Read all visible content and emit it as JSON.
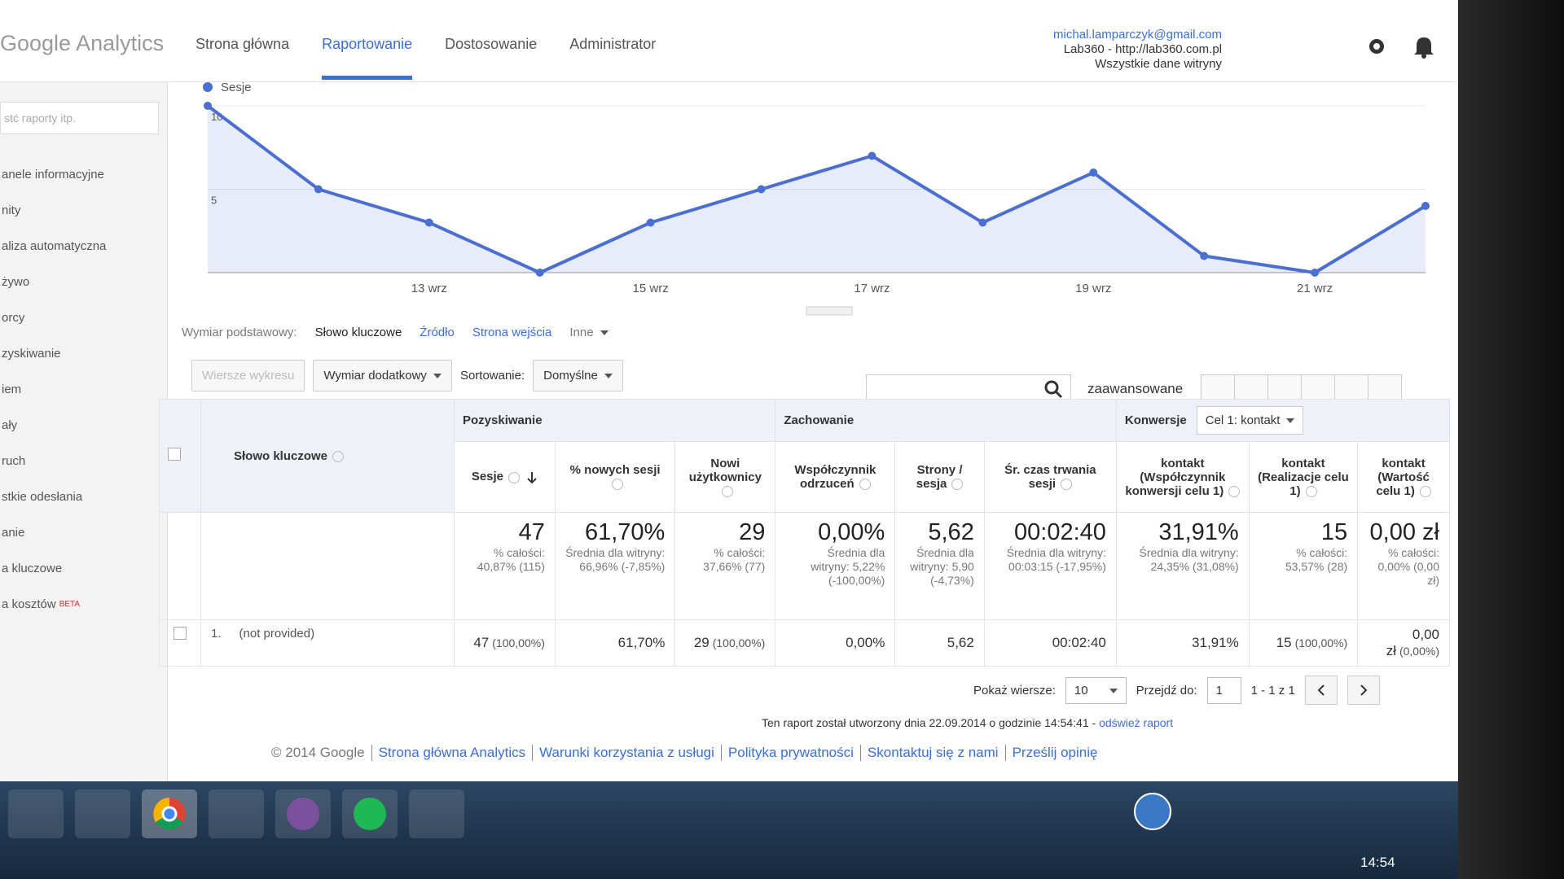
{
  "header": {
    "logo": "Google Analytics",
    "nav": [
      "Strona główna",
      "Raportowanie",
      "Dostosowanie",
      "Administrator"
    ],
    "account": {
      "email": "michal.lamparczyk@gmail.com",
      "property": "Lab360 - http://lab360.com.pl",
      "view": "Wszystkie dane witryny"
    }
  },
  "sidebar": {
    "search": "stć raporty itp.",
    "items": [
      "anele informacyjne",
      "nity",
      "aliza automatyczna",
      "żywo",
      "orcy",
      "zyskiwanie",
      "iem",
      "ały",
      "ruch",
      "stkie odesłania",
      "anie",
      "a kluczowe"
    ],
    "cost_item": {
      "label": "a kosztów",
      "badge": "BETA"
    }
  },
  "chart_data": {
    "type": "line",
    "categories": [
      null,
      null,
      "13 wrz",
      null,
      "15 wrz",
      null,
      "17 wrz",
      null,
      "19 wrz",
      null,
      "21 wrz",
      null
    ],
    "series": [
      {
        "name": "Sesje",
        "color": "#4a6fd1",
        "values": [
          10,
          5,
          3,
          0,
          3,
          5,
          7,
          3,
          6,
          1,
          0,
          4
        ]
      }
    ],
    "ylim": [
      0,
      10
    ],
    "yticks": [
      5,
      10
    ],
    "grid": true
  },
  "toolbar": {
    "dimension_label": "Wymiar podstawowy:",
    "dimensions": [
      "Słowo kluczowe",
      "Źródło",
      "Strona wejścia",
      "Inne"
    ],
    "plot_rows": "Wiersze wykresu",
    "secondary": "Wymiar dodatkowy",
    "sort_label": "Sortowanie:",
    "sort": "Domyślne",
    "advanced": "zaawansowane"
  },
  "table": {
    "groups": [
      "Pozyskiwanie",
      "Zachowanie",
      "Konwersje"
    ],
    "goal": "Cel 1: kontakt",
    "columns": [
      "Słowo kluczowe",
      "Sesje",
      "% nowych sesji",
      "Nowi użytkownicy",
      "Współczynnik odrzuceń",
      "Strony / sesja",
      "Śr. czas trwania sesji",
      "kontakt (Współczynnik konwersji celu 1)",
      "kontakt (Realizacje celu 1)",
      "kontakt (Wartość celu 1)"
    ],
    "totals": [
      {
        "value": "47",
        "note": "% całości: 40,87% (115)"
      },
      {
        "value": "61,70%",
        "note": "Średnia dla witryny: 66,96% (-7,85%)"
      },
      {
        "value": "29",
        "note": "% całości: 37,66% (77)"
      },
      {
        "value": "0,00%",
        "note": "Średnia dla witryny: 5,22% (-100,00%)"
      },
      {
        "value": "5,62",
        "note": "Średnia dla witryny: 5,90 (-4,73%)"
      },
      {
        "value": "00:02:40",
        "note": "Średnia dla witryny: 00:03:15 (-17,95%)"
      },
      {
        "value": "31,91%",
        "note": "Średnia dla witryny: 24,35% (31,08%)"
      },
      {
        "value": "15",
        "note": "% całości: 53,57% (28)"
      },
      {
        "value": "0,00 zł",
        "note": "% całości: 0,00% (0,00 zł)"
      }
    ],
    "rows": [
      {
        "index": "1.",
        "keyword": "(not provided)",
        "cells": [
          {
            "value": "47",
            "pct": "(100,00%)"
          },
          {
            "value": "61,70%"
          },
          {
            "value": "29",
            "pct": "(100,00%)"
          },
          {
            "value": "0,00%"
          },
          {
            "value": "5,62"
          },
          {
            "value": "00:02:40"
          },
          {
            "value": "31,91%"
          },
          {
            "value": "15",
            "pct": "(100,00%)"
          },
          {
            "value": "0,00 zł",
            "pct": "(0,00%)"
          }
        ]
      }
    ]
  },
  "pagination": {
    "rows_label": "Pokaż wiersze:",
    "rows": "10",
    "goto_label": "Przejdź do:",
    "goto": "1",
    "range": "1 - 1 z 1"
  },
  "report_note": "Ten raport został utworzony dnia 22.09.2014 o godzinie 14:54:41 -",
  "refresh": "odśwież raport",
  "footer": [
    "© 2014 Google",
    "Strona główna Analytics",
    "Warunki korzystania z usługi",
    "Polityka prywatności",
    "Skontaktuj się z nami",
    "Prześlij opinię"
  ],
  "clock": "14:54"
}
